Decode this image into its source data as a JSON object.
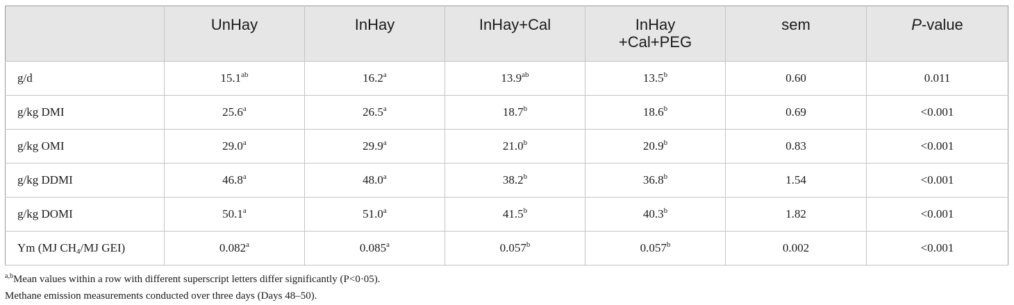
{
  "headers": [
    {
      "line1": "",
      "line2": ""
    },
    {
      "line1": "UnHay",
      "line2": ""
    },
    {
      "line1": "InHay",
      "line2": ""
    },
    {
      "line1": "InHay+Cal",
      "line2": ""
    },
    {
      "line1": "InHay",
      "line2": "+Cal+PEG"
    },
    {
      "line1": "sem",
      "line2": ""
    },
    {
      "line1": "P",
      "line2": "-value"
    }
  ],
  "rows": [
    {
      "label": "g/d",
      "label_sub": "",
      "label_suffix": "",
      "cells": [
        {
          "v": "15.1",
          "s": "ab"
        },
        {
          "v": "16.2",
          "s": "a"
        },
        {
          "v": "13.9",
          "s": "ab"
        },
        {
          "v": "13.5",
          "s": "b"
        },
        {
          "v": "0.60",
          "s": ""
        },
        {
          "v": "0.011",
          "s": ""
        }
      ]
    },
    {
      "label": "g/kg DMI",
      "label_sub": "",
      "label_suffix": "",
      "cells": [
        {
          "v": "25.6",
          "s": "a"
        },
        {
          "v": "26.5",
          "s": "a"
        },
        {
          "v": "18.7",
          "s": "b"
        },
        {
          "v": "18.6",
          "s": "b"
        },
        {
          "v": "0.69",
          "s": ""
        },
        {
          "v": "<0.001",
          "s": ""
        }
      ]
    },
    {
      "label": "g/kg OMI",
      "label_sub": "",
      "label_suffix": "",
      "cells": [
        {
          "v": "29.0",
          "s": "a"
        },
        {
          "v": "29.9",
          "s": "a"
        },
        {
          "v": "21.0",
          "s": "b"
        },
        {
          "v": "20.9",
          "s": "b"
        },
        {
          "v": "0.83",
          "s": ""
        },
        {
          "v": "<0.001",
          "s": ""
        }
      ]
    },
    {
      "label": "g/kg DDMI",
      "label_sub": "",
      "label_suffix": "",
      "cells": [
        {
          "v": "46.8",
          "s": "a"
        },
        {
          "v": "48.0",
          "s": "a"
        },
        {
          "v": "38.2",
          "s": "b"
        },
        {
          "v": "36.8",
          "s": "b"
        },
        {
          "v": "1.54",
          "s": ""
        },
        {
          "v": "<0.001",
          "s": ""
        }
      ]
    },
    {
      "label": "g/kg DOMI",
      "label_sub": "",
      "label_suffix": "",
      "cells": [
        {
          "v": "50.1",
          "s": "a"
        },
        {
          "v": "51.0",
          "s": "a"
        },
        {
          "v": "41.5",
          "s": "b"
        },
        {
          "v": "40.3",
          "s": "b"
        },
        {
          "v": "1.82",
          "s": ""
        },
        {
          "v": "<0.001",
          "s": ""
        }
      ]
    },
    {
      "label": "Ym (MJ CH",
      "label_sub": "4",
      "label_suffix": "/MJ GEI)",
      "cells": [
        {
          "v": "0.082",
          "s": "a"
        },
        {
          "v": "0.085",
          "s": "a"
        },
        {
          "v": "0.057",
          "s": "b"
        },
        {
          "v": "0.057",
          "s": "b"
        },
        {
          "v": "0.002",
          "s": ""
        },
        {
          "v": "<0.001",
          "s": ""
        }
      ]
    }
  ],
  "footnotes": {
    "note1_sup": "a,b",
    "note1_text": "Mean values within a row with different superscript letters differ significantly (P<0·05).",
    "note2_text": "Methane emission measurements conducted over three days (Days 48–50)."
  }
}
